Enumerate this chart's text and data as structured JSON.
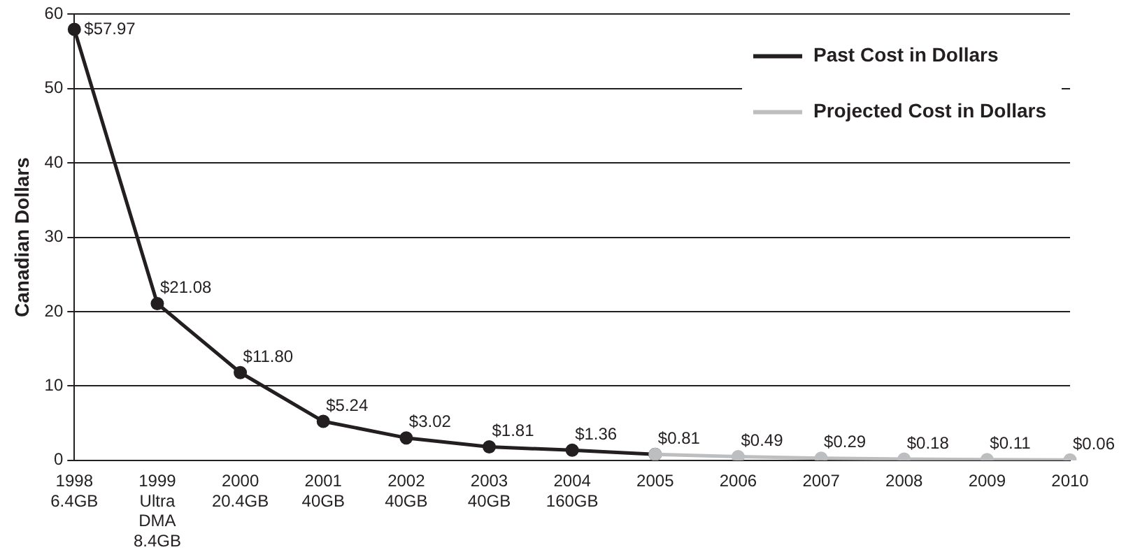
{
  "chart_data": {
    "type": "line",
    "ylabel": "Canadian Dollars",
    "categories": [
      "1998\n6.4GB",
      "1999\nUltra\nDMA\n8.4GB",
      "2000\n20.4GB",
      "2001\n40GB",
      "2002\n40GB",
      "2003\n40GB",
      "2004\n160GB",
      "2005",
      "2006",
      "2007",
      "2008",
      "2009",
      "2010"
    ],
    "series": [
      {
        "name": "Past Cost in Dollars",
        "color": "#231f20",
        "values": [
          57.97,
          21.08,
          11.8,
          5.24,
          3.02,
          1.81,
          1.36,
          0.81,
          null,
          null,
          null,
          null,
          null
        ],
        "value_labels": [
          "$57.97",
          "$21.08",
          "$11.80",
          "$5.24",
          "$3.02",
          "$1.81",
          "$1.36",
          "$0.81",
          null,
          null,
          null,
          null,
          null
        ]
      },
      {
        "name": "Projected Cost in Dollars",
        "color": "#bcbec0",
        "values": [
          null,
          null,
          null,
          null,
          null,
          null,
          null,
          0.81,
          0.49,
          0.29,
          0.18,
          0.11,
          0.06
        ],
        "value_labels": [
          null,
          null,
          null,
          null,
          null,
          null,
          null,
          null,
          "$0.49",
          "$0.29",
          "$0.18",
          "$0.11",
          "$0.06"
        ]
      }
    ],
    "ylim": [
      0,
      60
    ],
    "yticks": [
      0,
      10,
      20,
      30,
      40,
      50,
      60
    ],
    "grid": "y",
    "legend": "top right",
    "marker": "circle",
    "line_style": "solid"
  }
}
